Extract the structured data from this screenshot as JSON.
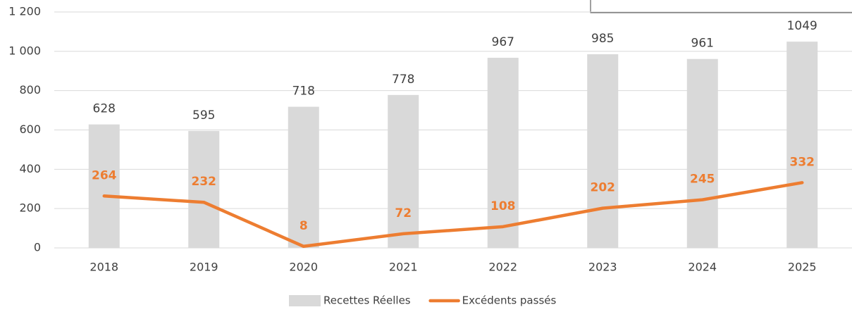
{
  "chart_data": {
    "type": "bar",
    "categories": [
      "2018",
      "2019",
      "2020",
      "2021",
      "2022",
      "2023",
      "2024",
      "2025"
    ],
    "series": [
      {
        "name": "Recettes Réelles",
        "type": "bar",
        "color": "#d9d9d9",
        "values": [
          628,
          595,
          718,
          778,
          967,
          985,
          961,
          1049
        ]
      },
      {
        "name": "Excédents passés",
        "type": "line",
        "color": "#ed7d31",
        "values": [
          264,
          232,
          8,
          72,
          108,
          202,
          245,
          332
        ]
      }
    ],
    "ylim": [
      0,
      1200
    ],
    "yticks": [
      0,
      200,
      400,
      600,
      800,
      {
        "value": 1000,
        "label": "1 000"
      },
      {
        "value": 1200,
        "label": "1 200"
      }
    ],
    "grid": true,
    "legend": "bottom"
  }
}
